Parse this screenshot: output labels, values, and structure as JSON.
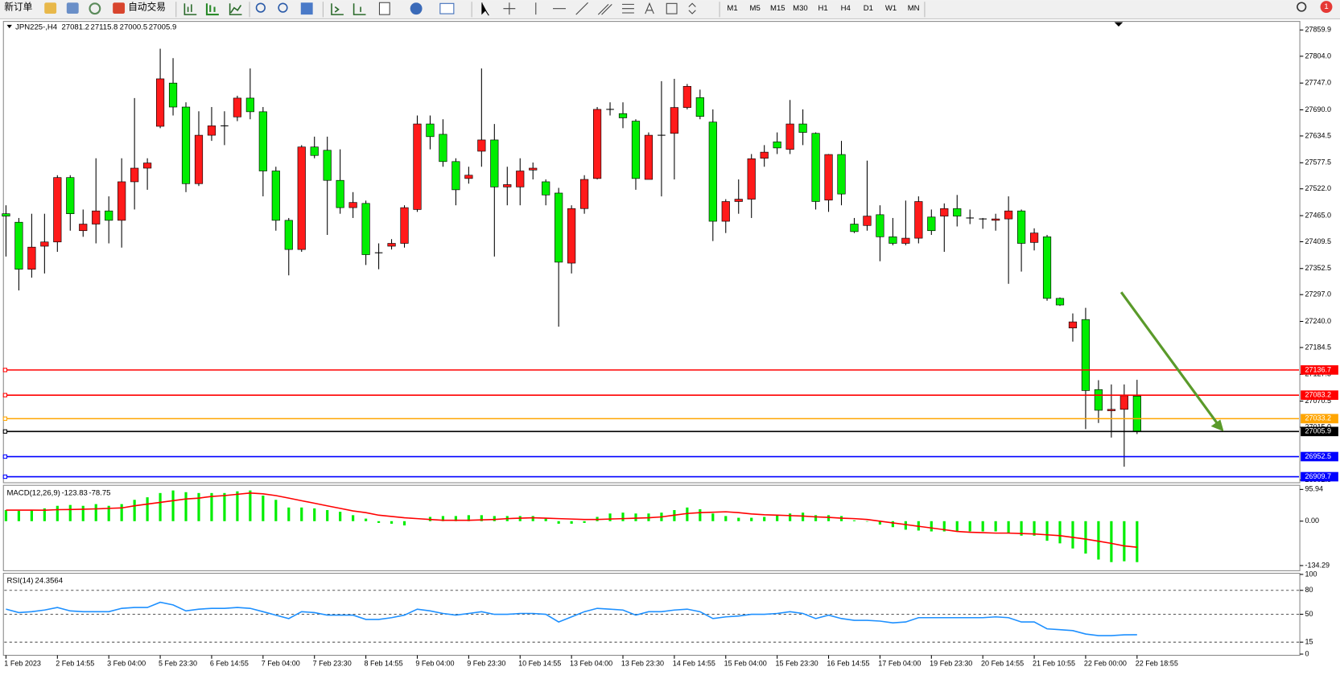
{
  "toolbar": {
    "new_order": "新订单",
    "auto_trading": "自动交易",
    "timeframes": [
      "M1",
      "M5",
      "M15",
      "M30",
      "H1",
      "H4",
      "D1",
      "W1",
      "MN"
    ],
    "notifications": 1
  },
  "chart_data": [
    {
      "type": "candlestick",
      "title": "JPN225-,H4",
      "categories": [
        "1 Feb 2023",
        null,
        null,
        null,
        "2 Feb 14:55",
        null,
        null,
        null,
        "3 Feb 04:00",
        null,
        null,
        null,
        "5 Feb 23:30",
        null,
        null,
        null,
        "6 Feb 14:55",
        null,
        null,
        null,
        "7 Feb 04:00",
        null,
        null,
        null,
        "7 Feb 23:30",
        null,
        null,
        null,
        "8 Feb 14:55",
        null,
        null,
        null,
        "9 Feb 04:00",
        null,
        null,
        null,
        "9 Feb 23:30",
        null,
        null,
        null,
        "10 Feb 14:55",
        null,
        null,
        null,
        "13 Feb 04:00",
        null,
        null,
        null,
        "13 Feb 23:30",
        null,
        null,
        null,
        "14 Feb 14:55",
        null,
        null,
        null,
        "15 Feb 04:00",
        null,
        null,
        null,
        "15 Feb 23:30",
        null,
        null,
        null,
        "16 Feb 14:55",
        null,
        null,
        null,
        "17 Feb 04:00",
        null,
        null,
        null,
        "19 Feb 23:30",
        null,
        null,
        null,
        "20 Feb 14:55",
        null,
        null,
        null,
        "21 Feb 10:55",
        null,
        null,
        null,
        "22 Feb 00:00",
        null,
        null,
        null,
        "22 Feb 18:55"
      ],
      "open": [
        27469,
        27451,
        27351,
        27400,
        27409,
        27546,
        27433,
        27447,
        27475,
        27455,
        27537,
        27566,
        27655,
        27747,
        27696,
        27533,
        27636,
        27656,
        27675,
        27715,
        27686,
        27560,
        27455,
        27393,
        27611,
        27604,
        27540,
        27482,
        27491,
        27386,
        27400,
        27406,
        27478,
        27660,
        27638,
        27580,
        27544,
        27602,
        27626,
        27526,
        27526,
        27562,
        27537,
        27513,
        27364,
        27480,
        27544,
        27691,
        27682,
        27666,
        27542,
        27636,
        27640,
        27695,
        27716,
        27664,
        27453,
        27495,
        27500,
        27587,
        27622,
        27606,
        27660,
        27640,
        27498,
        27595,
        27447,
        27444,
        27467,
        27420,
        27406,
        27417,
        27462,
        27464,
        27480,
        27460,
        27458,
        27455,
        27458,
        27475,
        27408,
        27420,
        27289,
        27226,
        27244,
        27095,
        27050,
        27053,
        27081.2
      ],
      "high": [
        27487,
        27460,
        27469,
        27469,
        27551,
        27551,
        27478,
        27587,
        27506,
        27587,
        27715,
        27587,
        27820,
        27800,
        27706,
        27687,
        27696,
        27687,
        27720,
        27778,
        27696,
        27569,
        27460,
        27615,
        27633,
        27633,
        27606,
        27515,
        27497,
        27406,
        27415,
        27487,
        27678,
        27678,
        27670,
        27587,
        27569,
        27778,
        27660,
        27569,
        27587,
        27578,
        27542,
        27524,
        27487,
        27551,
        27696,
        27706,
        27706,
        27670,
        27642,
        27751,
        27756,
        27745,
        27733,
        27691,
        27500,
        27542,
        27596,
        27615,
        27642,
        27711,
        27691,
        27642,
        27596,
        27624,
        27460,
        27582,
        27487,
        27460,
        27497,
        27506,
        27478,
        27491,
        27509,
        27478,
        27460,
        27469,
        27506,
        27478,
        27438,
        27424,
        27291,
        27257,
        27269,
        27115,
        27106,
        27106,
        27115.8
      ],
      "low": [
        27378,
        27306,
        27333,
        27342,
        27388,
        27433,
        27420,
        27406,
        27406,
        27397,
        27478,
        27520,
        27651,
        27678,
        27515,
        27528,
        27624,
        27615,
        27666,
        27670,
        27506,
        27433,
        27338,
        27388,
        27587,
        27424,
        27469,
        27460,
        27360,
        27351,
        27393,
        27397,
        27473,
        27606,
        27569,
        27487,
        27533,
        27569,
        27378,
        27487,
        27487,
        27542,
        27487,
        27229,
        27342,
        27469,
        27542,
        27678,
        27651,
        27520,
        27542,
        27506,
        27542,
        27691,
        27670,
        27411,
        27428,
        27469,
        27460,
        27569,
        27596,
        27596,
        27615,
        27478,
        27473,
        27487,
        27428,
        27433,
        27368,
        27402,
        27402,
        27406,
        27424,
        27388,
        27442,
        27447,
        27437,
        27433,
        27320,
        27346,
        27391,
        27284,
        27273,
        27197,
        27011,
        27024,
        26993,
        26931,
        27000.5
      ],
      "close": [
        27464,
        27351,
        27398,
        27409,
        27546,
        27469,
        27447,
        27475,
        27455,
        27537,
        27566,
        27577,
        27756,
        27696,
        27533,
        27636,
        27656,
        27656,
        27715,
        27686,
        27560,
        27455,
        27393,
        27611,
        27593,
        27540,
        27482,
        27493,
        27382,
        27386,
        27406,
        27482,
        27660,
        27633,
        27580,
        27520,
        27551,
        27626,
        27526,
        27531,
        27560,
        27566,
        27509,
        27366,
        27480,
        27542,
        27691,
        27691,
        27673,
        27544,
        27636,
        27636,
        27695,
        27740,
        27676,
        27453,
        27495,
        27500,
        27586,
        27600,
        27609,
        27660,
        27642,
        27495,
        27595,
        27511,
        27431,
        27464,
        27420,
        27406,
        27417,
        27495,
        27433,
        27480,
        27464,
        27460,
        27458,
        27458,
        27475,
        27406,
        27428,
        27289,
        27275,
        27239,
        27093,
        27051,
        27053,
        27082,
        27005.9
      ],
      "up_color": "#ff1a1a",
      "down_color": "#00ee00",
      "ylim": [
        26896.9,
        27878.1
      ],
      "yticks": [
        27859.9,
        {
          "value": 27804,
          "label": "27804.0"
        },
        {
          "value": 27747,
          "label": "27747.0"
        },
        {
          "value": 27690,
          "label": "27690.0"
        },
        27634.5,
        27577.5,
        {
          "value": 27522,
          "label": "27522.0"
        },
        {
          "value": 27465,
          "label": "27465.0"
        },
        27409.5,
        27352.5,
        {
          "value": 27297,
          "label": "27297.0"
        },
        {
          "value": 27240,
          "label": "27240.0"
        },
        27184.5,
        27127.5,
        27070.5,
        {
          "value": 27015,
          "label": "27015.0"
        },
        26902.5
      ],
      "levels": [
        {
          "value": 27136.7,
          "color": "#ff0000"
        },
        {
          "value": 27083.2,
          "color": "#ff0000"
        },
        {
          "value": 27033.2,
          "color": "#ffa500"
        },
        {
          "value": 27005.9,
          "color": "#000000"
        },
        {
          "value": 26952.5,
          "color": "#0000ff"
        },
        {
          "value": 26909.7,
          "color": "#0000ff"
        }
      ]
    },
    {
      "type": "macd",
      "title": "MACD(12,26,9)",
      "values": [
        33.5,
        31,
        33.5,
        38.7,
        46.4,
        49,
        46.4,
        51.6,
        46.4,
        51.6,
        64.5,
        72.2,
        85.1,
        92.9,
        87.7,
        85.1,
        85.1,
        85.1,
        90.3,
        92.9,
        77.4,
        64.5,
        41.3,
        41.3,
        38.7,
        33.5,
        28.4,
        18.1,
        7.7,
        -5.2,
        -7.7,
        -12.9,
        0,
        12.9,
        15.5,
        15.5,
        18.1,
        18.1,
        15.5,
        15.5,
        15.5,
        15.5,
        7.7,
        -7.7,
        -7.7,
        -5.2,
        12.9,
        23.2,
        25.8,
        23.2,
        23.2,
        25.8,
        33.5,
        41.3,
        36.1,
        23.2,
        15.5,
        10.3,
        10.3,
        12.9,
        18.1,
        23.2,
        25.8,
        18.1,
        18.1,
        15.5,
        2.6,
        -1.3,
        -10.3,
        -18.1,
        -25.8,
        -28.4,
        -31,
        -31,
        -31,
        -31,
        -31,
        -31,
        -36.1,
        -43.9,
        -43.9,
        -59.3,
        -67.1,
        -82.6,
        -98,
        -116.1,
        -123.8,
        -121.3,
        -123.83
      ],
      "signal": [
        33.5,
        33.5,
        33.5,
        33,
        34.8,
        35.3,
        36.1,
        37.2,
        38.7,
        40,
        46.4,
        51.6,
        56.8,
        61.9,
        67.1,
        69.7,
        74.8,
        77.4,
        81.3,
        85.1,
        82.6,
        77.4,
        69.7,
        61.9,
        54.2,
        46.4,
        38.7,
        31,
        25.8,
        18.1,
        14.2,
        10.3,
        7.7,
        5.2,
        2.6,
        2.6,
        2.6,
        3.9,
        5.2,
        7.7,
        9,
        10.3,
        9,
        7.7,
        6.5,
        5.2,
        5.2,
        6.5,
        7.7,
        9,
        10.3,
        12.9,
        18.1,
        23.2,
        25.8,
        27.1,
        28.4,
        25.8,
        21.9,
        19.4,
        18.1,
        16.8,
        15.5,
        12.9,
        11.6,
        9,
        7.7,
        5.2,
        0,
        -5.2,
        -10.3,
        -15.5,
        -20.6,
        -25.8,
        -31,
        -33.5,
        -34.8,
        -36.1,
        -36.1,
        -37.4,
        -38.7,
        -41.3,
        -43.9,
        -49,
        -54.2,
        -60.6,
        -67.1,
        -74.8,
        -78.75
      ],
      "color": "#00ee00",
      "signal_color": "#ff0000",
      "ylim": [
        -149.9,
        108.5
      ],
      "yticks": [
        95.94,
        {
          "value": 0,
          "label": "0.00"
        },
        -134.29
      ]
    },
    {
      "type": "line",
      "title": "RSI(14)",
      "values": [
        56.4,
        52.1,
        53.2,
        55.3,
        58.5,
        54.2,
        53.2,
        53.2,
        53.2,
        57.4,
        58.5,
        58.5,
        65,
        61.7,
        54.2,
        56.4,
        57.4,
        57.4,
        58.5,
        57.4,
        53.2,
        48.9,
        44.6,
        53.2,
        52.1,
        48.9,
        48.9,
        48.9,
        43.5,
        43.5,
        45.7,
        48.9,
        56.4,
        54.2,
        51,
        48.9,
        51,
        53.2,
        49.9,
        49.9,
        51,
        51,
        49.9,
        40.3,
        46.7,
        53.2,
        57.4,
        56.4,
        55.3,
        48.9,
        53.2,
        53.2,
        55.3,
        56.4,
        53.2,
        44.6,
        46.7,
        47.8,
        49.9,
        49.9,
        51,
        53.2,
        51,
        44.6,
        48.9,
        44.6,
        42.4,
        42.4,
        41.4,
        39.2,
        40.3,
        45.7,
        45.7,
        45.7,
        45.7,
        45.7,
        45.7,
        46.7,
        45.7,
        40.3,
        40.3,
        31.7,
        30.6,
        29.5,
        25.2,
        23.2,
        23.2,
        24.2,
        24.3564
      ],
      "color": "#1e90ff",
      "ylim": [
        -1.5,
        101.4
      ],
      "yticks": [
        100,
        80,
        50,
        15,
        0
      ]
    }
  ]
}
